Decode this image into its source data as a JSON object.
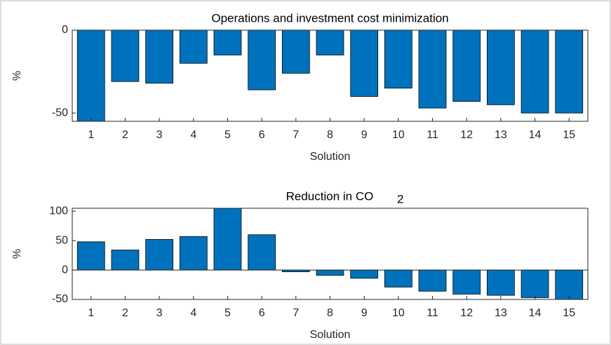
{
  "chart_data": [
    {
      "type": "bar",
      "title": "Operations and investment cost minimization",
      "xlabel": "Solution",
      "ylabel": "%",
      "categories": [
        "1",
        "2",
        "3",
        "4",
        "5",
        "6",
        "7",
        "8",
        "9",
        "10",
        "11",
        "12",
        "13",
        "14",
        "15"
      ],
      "values": [
        -55,
        -31,
        -32,
        -20,
        -15,
        -36,
        -26,
        -15,
        -40,
        -35,
        -47,
        -43,
        -45,
        -50,
        -50
      ],
      "color": "#0072bd",
      "ylim": [
        -55,
        0
      ],
      "yticks": [
        -50,
        0
      ]
    },
    {
      "type": "bar",
      "title": "Reduction in CO",
      "title_subscript": "2",
      "xlabel": "Solution",
      "ylabel": "%",
      "categories": [
        "1",
        "2",
        "3",
        "4",
        "5",
        "6",
        "7",
        "8",
        "9",
        "10",
        "11",
        "12",
        "13",
        "14",
        "15"
      ],
      "values": [
        48,
        34,
        52,
        57,
        105,
        60,
        -3,
        -9,
        -14,
        -29,
        -36,
        -41,
        -43,
        -47,
        -50
      ],
      "color": "#0072bd",
      "ylim": [
        -50,
        105
      ],
      "yticks": [
        -50,
        0,
        50,
        100
      ]
    }
  ]
}
